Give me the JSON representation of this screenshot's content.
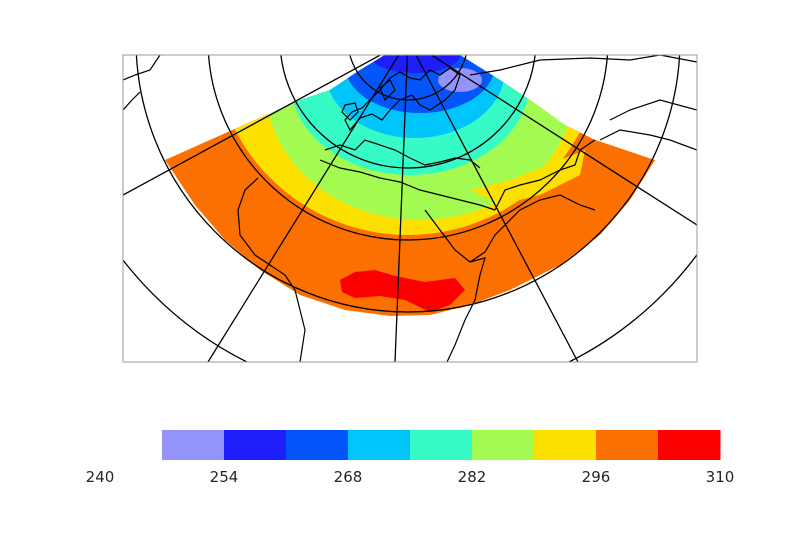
{
  "map": {
    "projection": "polar stereographic (north pole) with coastlines, parallels and meridians",
    "field_extent": "Europe, North Africa, Middle East",
    "levels": [
      240,
      247,
      254,
      261,
      268,
      275,
      282,
      289,
      296,
      303,
      310
    ],
    "level_colors": [
      "#ffffff",
      "#9393fb",
      "#1e1efb",
      "#0455fb",
      "#00c5fb",
      "#36fbc7",
      "#a3fb52",
      "#fbe000",
      "#fb7000",
      "#fb0000"
    ]
  },
  "colorbar": {
    "tick_labels": [
      "240",
      "254",
      "268",
      "282",
      "296",
      "310"
    ]
  }
}
